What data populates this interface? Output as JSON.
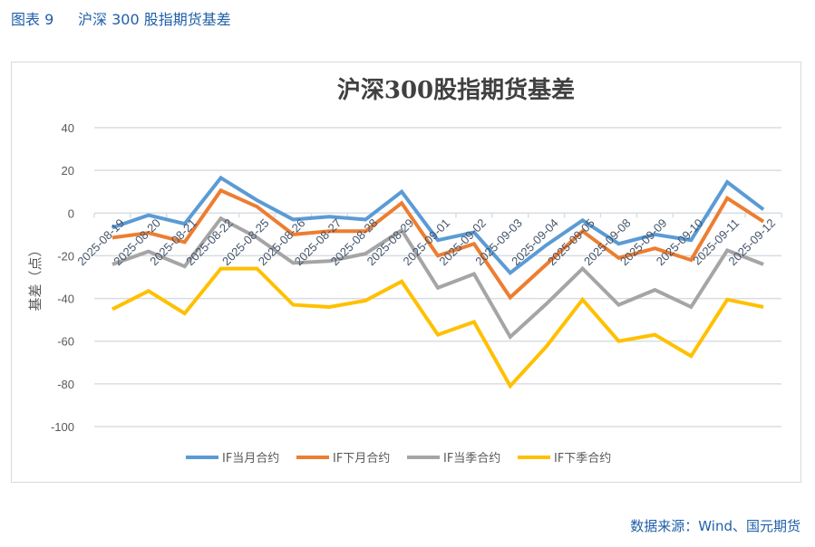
{
  "figure_label": "图表 9",
  "figure_title": "沪深 300 股指期货基差",
  "source": "数据来源：Wind、国元期货",
  "chart_data": {
    "type": "line",
    "title": "沪深300股指期货基差",
    "xlabel": "",
    "ylabel": "基差（点）",
    "ylim": [
      -100,
      40
    ],
    "yticks": [
      40,
      20,
      0,
      -20,
      -40,
      -60,
      -80,
      -100
    ],
    "grid": true,
    "legend_position": "bottom",
    "categories": [
      "2025-08-19",
      "2025-08-20",
      "2025-08-21",
      "2025-08-22",
      "2025-08-25",
      "2025-08-26",
      "2025-08-27",
      "2025-08-28",
      "2025-08-29",
      "2025-09-01",
      "2025-09-02",
      "2025-09-03",
      "2025-09-04",
      "2025-09-05",
      "2025-09-08",
      "2025-09-09",
      "2025-09-10",
      "2025-09-11",
      "2025-09-12"
    ],
    "series": [
      {
        "name": "IF当月合约",
        "color": "#5b9bd5",
        "values": [
          -6.8,
          -1,
          -5,
          16.5,
          6,
          -3,
          -1.7,
          -3,
          10,
          -12.7,
          -9,
          -28,
          -15,
          -3.4,
          -14.4,
          -10,
          -12.7,
          14.5,
          1.7
        ]
      },
      {
        "name": "IF下月合约",
        "color": "#ed7d31",
        "values": [
          -11.5,
          -9.3,
          -13.6,
          10.6,
          3,
          -10,
          -8.5,
          -8.5,
          4.7,
          -20,
          -14.4,
          -39.5,
          -24,
          -8.5,
          -21,
          -16.5,
          -22,
          7,
          -4
        ]
      },
      {
        "name": "IF当季合约",
        "color": "#a5a5a5",
        "values": [
          -24,
          -18,
          -25,
          -2.5,
          -11.5,
          -23.4,
          -22.5,
          -19,
          -8,
          -35,
          -28.5,
          -58,
          -42.5,
          -26,
          -43,
          -36,
          -44,
          -17.5,
          -24
        ]
      },
      {
        "name": "IF下季合约",
        "color": "#ffc000",
        "values": [
          -45,
          -36.5,
          -47,
          -26,
          -26,
          -43,
          -44,
          -41,
          -32,
          -57,
          -51,
          -81,
          -62.5,
          -40.5,
          -60,
          -57,
          -67,
          -40.5,
          -44
        ]
      }
    ]
  }
}
